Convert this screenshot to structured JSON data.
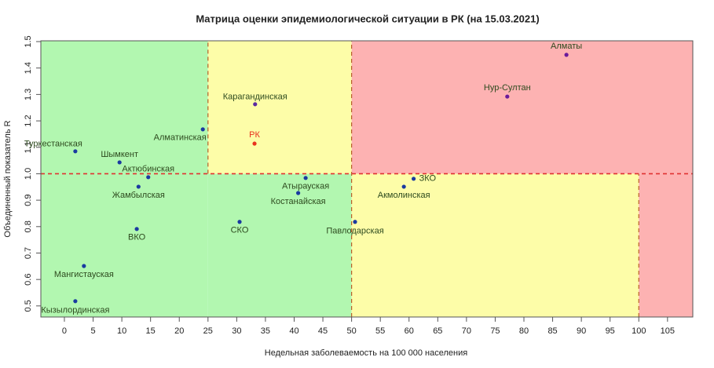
{
  "chart_data": {
    "type": "scatter",
    "title": "Матрица оценки эпидемиологической ситуации в РК (на 15.03.2021)",
    "x_label": "Недельная заболеваемость на 100 000 населения",
    "y_label": "Объединенный показатель R",
    "labels": [
      "Алматы",
      "Нур-Султан",
      "Карагандинская",
      "РК",
      "Алматинская",
      "Туркестанская",
      "Шымкент",
      "Актюбинская",
      "Жамбылская",
      "Атырауская",
      "Костанайская",
      "ЗКО",
      "Акмолинская",
      "Павлодарская",
      "СКО",
      "ВКО",
      "Мангистауская",
      "Кызылординская"
    ],
    "x": [
      87.4,
      77.1,
      33.2,
      33.1,
      24.1,
      1.9,
      9.6,
      14.6,
      12.9,
      42.0,
      40.7,
      60.8,
      59.1,
      50.6,
      30.5,
      12.6,
      3.4,
      1.9
    ],
    "values": [
      1.45,
      1.292,
      1.263,
      1.114,
      1.168,
      1.085,
      1.043,
      0.987,
      0.951,
      0.984,
      0.927,
      0.981,
      0.951,
      0.818,
      0.818,
      0.791,
      0.651,
      0.518
    ],
    "colors": [
      "#6a1a9a",
      "#6a1a9a",
      "#5a2aa0",
      "#e8321e",
      "#1a3aa0",
      "#1a3aa0",
      "#1a3aa0",
      "#1a3aa0",
      "#1a3aa0",
      "#1a3aa0",
      "#1a3aa0",
      "#1a3aa0",
      "#1a3aa0",
      "#1a3aa0",
      "#1a3aa0",
      "#1a3aa0",
      "#1a3aa0",
      "#1a3aa0"
    ],
    "xlim": [
      -4.1,
      109.4
    ],
    "ylim": [
      0.458,
      1.503
    ],
    "xticks": [
      0,
      5,
      10,
      15,
      20,
      25,
      30,
      35,
      40,
      45,
      50,
      55,
      60,
      65,
      70,
      75,
      80,
      85,
      90,
      95,
      100,
      105
    ],
    "yticks": [
      0.5,
      0.6,
      0.7,
      0.8,
      0.9,
      {
        "value": 1,
        "label": "1.0"
      },
      1.1,
      1.2,
      1.3,
      1.4,
      1.5
    ],
    "zones": [
      {
        "x": [
          -4.1,
          25
        ],
        "y": [
          0.458,
          1.503
        ],
        "color": "#b2f7b0"
      },
      {
        "x": [
          25,
          50
        ],
        "y": [
          0.458,
          1
        ],
        "color": "#b2f7b0"
      },
      {
        "x": [
          25,
          50
        ],
        "y": [
          1,
          1.503
        ],
        "color": "#fdfda8"
      },
      {
        "x": [
          50,
          109.4
        ],
        "y": [
          1,
          1.503
        ],
        "color": "#fdb2b2"
      },
      {
        "x": [
          50,
          100
        ],
        "y": [
          0.458,
          1
        ],
        "color": "#fdfda8"
      },
      {
        "x": [
          100,
          109.4
        ],
        "y": [
          0.458,
          1
        ],
        "color": "#fdb2b2"
      }
    ],
    "dividers": [
      {
        "axis": "x",
        "value": 25,
        "range": [
          1,
          1.503
        ],
        "color": "#b8602a"
      },
      {
        "axis": "x",
        "value": 50,
        "range": [
          0.458,
          1.503
        ],
        "color": "#b8602a"
      },
      {
        "axis": "x",
        "value": 100,
        "range": [
          0.458,
          1
        ],
        "color": "#b8602a"
      },
      {
        "axis": "y",
        "value": 1,
        "range": [
          -4.1,
          109.4
        ],
        "color": "#e03030"
      }
    ]
  }
}
